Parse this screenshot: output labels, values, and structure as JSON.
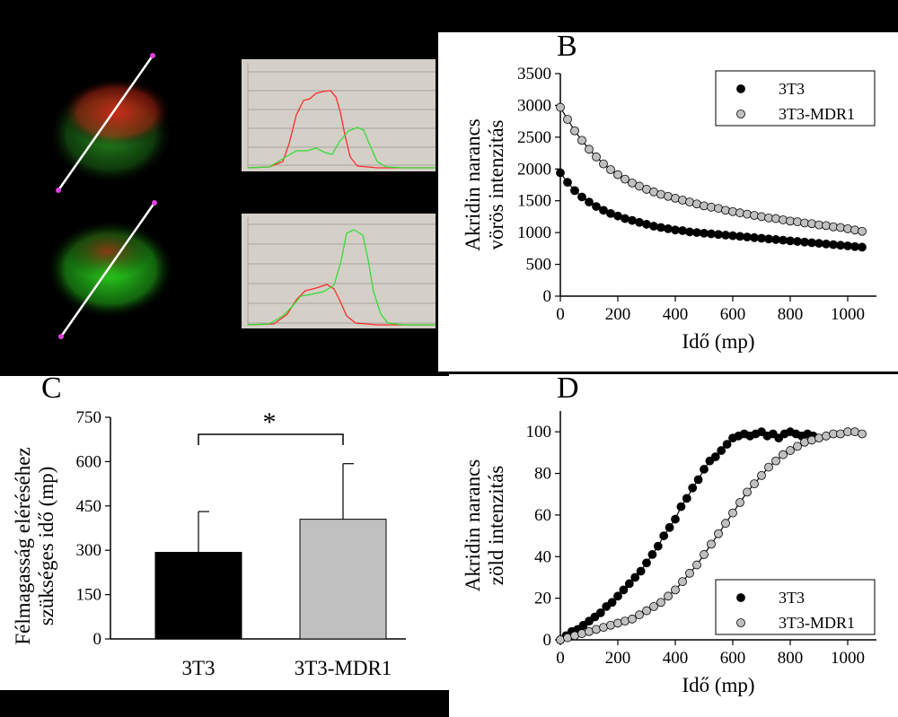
{
  "panel_labels": {
    "b": "B",
    "c": "C",
    "d": "D"
  },
  "colors": {
    "background": "#000000",
    "panel_bg": "#ffffff",
    "series_3t3": "#000000",
    "series_mdr1": "#c0c0c0",
    "plot_bg": "#d4d0c8",
    "profile_red": "#ff2a2a",
    "profile_green": "#33dd33"
  },
  "chart_data": [
    {
      "id": "B",
      "type": "scatter",
      "title": "",
      "xlabel": "Idő (mp)",
      "ylabel_lines": [
        "Akridin narancs",
        "vörös intenzitás"
      ],
      "xlim": [
        0,
        1100
      ],
      "ylim": [
        0,
        3500
      ],
      "xticks": [
        0,
        200,
        400,
        600,
        800,
        1000
      ],
      "yticks": [
        0,
        500,
        1000,
        1500,
        2000,
        2500,
        3000,
        3500
      ],
      "legend": "top-right",
      "series": [
        {
          "name": "3T3",
          "x": [
            0,
            25,
            50,
            75,
            100,
            125,
            150,
            175,
            200,
            225,
            250,
            275,
            300,
            325,
            350,
            375,
            400,
            425,
            450,
            475,
            500,
            525,
            550,
            575,
            600,
            625,
            650,
            675,
            700,
            725,
            750,
            775,
            800,
            825,
            850,
            875,
            900,
            925,
            950,
            975,
            1000,
            1025,
            1050
          ],
          "y": [
            1940,
            1790,
            1660,
            1560,
            1480,
            1410,
            1350,
            1300,
            1260,
            1220,
            1190,
            1160,
            1130,
            1100,
            1080,
            1060,
            1040,
            1030,
            1010,
            1000,
            990,
            980,
            970,
            960,
            950,
            940,
            930,
            920,
            910,
            900,
            890,
            880,
            870,
            860,
            850,
            840,
            830,
            820,
            810,
            800,
            790,
            780,
            770
          ]
        },
        {
          "name": "3T3-MDR1",
          "x": [
            0,
            25,
            50,
            75,
            100,
            125,
            150,
            175,
            200,
            225,
            250,
            275,
            300,
            325,
            350,
            375,
            400,
            425,
            450,
            475,
            500,
            525,
            550,
            575,
            600,
            625,
            650,
            675,
            700,
            725,
            750,
            775,
            800,
            825,
            850,
            875,
            900,
            925,
            950,
            975,
            1000,
            1025,
            1050
          ],
          "y": [
            2970,
            2780,
            2600,
            2450,
            2310,
            2190,
            2080,
            1990,
            1910,
            1840,
            1780,
            1730,
            1680,
            1640,
            1600,
            1570,
            1540,
            1510,
            1480,
            1450,
            1420,
            1400,
            1380,
            1350,
            1330,
            1310,
            1290,
            1270,
            1250,
            1230,
            1220,
            1200,
            1180,
            1170,
            1150,
            1140,
            1120,
            1110,
            1090,
            1080,
            1060,
            1040,
            1020
          ]
        }
      ]
    },
    {
      "id": "C",
      "type": "bar",
      "xlabel": "",
      "ylabel_lines": [
        "Félmagasság eléréséhez",
        "szükséges idő (mp)"
      ],
      "categories": [
        "3T3",
        "3T3-MDR1"
      ],
      "values": [
        293,
        405
      ],
      "errors": [
        138,
        188
      ],
      "ylim": [
        0,
        750
      ],
      "yticks": [
        0,
        150,
        300,
        450,
        600,
        750
      ],
      "annotation": "*"
    },
    {
      "id": "D",
      "type": "scatter",
      "xlabel": "Idő (mp)",
      "ylabel_lines": [
        "Akridin narancs",
        "zöld intenzitás"
      ],
      "xlim": [
        0,
        1100
      ],
      "ylim": [
        0,
        110
      ],
      "xticks": [
        0,
        200,
        400,
        600,
        800,
        1000
      ],
      "yticks": [
        0,
        20,
        40,
        60,
        80,
        100
      ],
      "legend": "bottom-right",
      "series": [
        {
          "name": "3T3",
          "x": [
            0,
            20,
            40,
            60,
            80,
            100,
            120,
            140,
            160,
            180,
            200,
            220,
            240,
            260,
            280,
            300,
            320,
            340,
            360,
            380,
            400,
            420,
            440,
            460,
            480,
            500,
            520,
            540,
            560,
            580,
            600,
            620,
            640,
            660,
            680,
            700,
            720,
            740,
            760,
            780,
            800,
            820,
            840,
            860,
            880
          ],
          "y": [
            0,
            2,
            4,
            5,
            7,
            9,
            11,
            13,
            16,
            18,
            21,
            24,
            27,
            30,
            33,
            37,
            41,
            45,
            50,
            54,
            58,
            64,
            68,
            73,
            77,
            82,
            86,
            88,
            91,
            94,
            97,
            98,
            99,
            98,
            99,
            100,
            98,
            99,
            97,
            99,
            100,
            99,
            98,
            99,
            98
          ]
        },
        {
          "name": "3T3-MDR1",
          "x": [
            0,
            25,
            50,
            75,
            100,
            125,
            150,
            175,
            200,
            225,
            250,
            275,
            300,
            325,
            350,
            375,
            400,
            425,
            450,
            475,
            500,
            525,
            550,
            575,
            600,
            625,
            650,
            675,
            700,
            725,
            750,
            775,
            800,
            825,
            850,
            875,
            900,
            925,
            950,
            975,
            1000,
            1025,
            1050
          ],
          "y": [
            0,
            1,
            2,
            3,
            4,
            5,
            6,
            7,
            8,
            9,
            10,
            12,
            14,
            16,
            18,
            21,
            24,
            28,
            32,
            36,
            41,
            46,
            51,
            56,
            61,
            66,
            71,
            75,
            79,
            83,
            86,
            89,
            91,
            93,
            95,
            96,
            97,
            98,
            99,
            99,
            100,
            100,
            99
          ]
        }
      ]
    }
  ]
}
